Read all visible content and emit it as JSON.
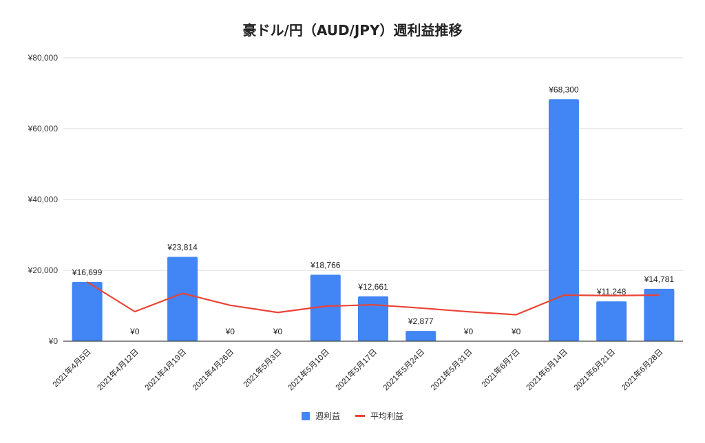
{
  "chart_data": {
    "type": "bar",
    "title": "豪ドル/円（AUD/JPY）週利益推移",
    "xlabel": "",
    "ylabel": "",
    "ylim": [
      0,
      80000
    ],
    "y_ticks": [
      "¥0",
      "¥20,000",
      "¥40,000",
      "¥60,000",
      "¥80,000"
    ],
    "y_tick_values": [
      0,
      20000,
      40000,
      60000,
      80000
    ],
    "grid": true,
    "legend_position": "bottom",
    "categories": [
      "2021年4月5日",
      "2021年4月12日",
      "2021年4月19日",
      "2021年4月26日",
      "2021年5月3日",
      "2021年5月10日",
      "2021年5月17日",
      "2021年5月24日",
      "2021年5月31日",
      "2021年6月7日",
      "2021年6月14日",
      "2021年6月21日",
      "2021年6月28日"
    ],
    "series": [
      {
        "name": "週利益",
        "type": "bar",
        "color": "#4285f4",
        "values": [
          16699,
          0,
          23814,
          0,
          0,
          18766,
          12661,
          2877,
          0,
          0,
          68300,
          11248,
          14781
        ],
        "labels": [
          "¥16,699",
          "¥0",
          "¥23,814",
          "¥0",
          "¥0",
          "¥18,766",
          "¥12,661",
          "¥2,877",
          "¥0",
          "¥0",
          "¥68,300",
          "¥11,248",
          "¥14,781"
        ]
      },
      {
        "name": "平均利益",
        "type": "line",
        "color": "#ea4335",
        "values": [
          16699,
          8350,
          13504,
          10128,
          8103,
          9880,
          10277,
          9352,
          8313,
          7482,
          13011,
          12864,
          13011
        ]
      }
    ]
  },
  "legend": {
    "items": [
      {
        "label": "週利益",
        "kind": "bar",
        "color": "#4285f4"
      },
      {
        "label": "平均利益",
        "kind": "line",
        "color": "#ea4335"
      }
    ]
  }
}
